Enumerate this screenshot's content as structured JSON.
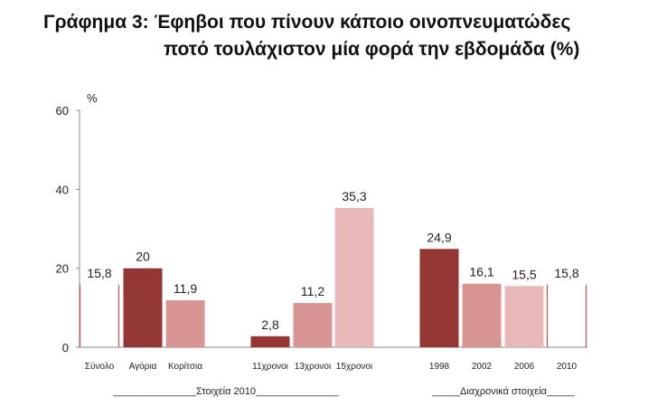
{
  "title_line1": "Γράφημα 3:  Έφηβοι που πίνουν κάποιο οινοπνευματώδες",
  "title_line2": "ποτό τουλάχιστον μία φορά την εβδομάδα (%)",
  "chart_data": {
    "type": "bar",
    "ylabel": "%",
    "ylim": [
      0,
      60
    ],
    "yticks": [
      "0",
      "20",
      "40",
      "60"
    ],
    "categories": [
      "Σύνολο",
      "Αγόρια",
      "Κορίτσια",
      "11χρονοι",
      "13χρονοι",
      "15χρονοι",
      "1998",
      "2002",
      "2006",
      "2010"
    ],
    "values": [
      15.8,
      20,
      11.9,
      2.8,
      11.2,
      35.3,
      24.9,
      16.1,
      15.5,
      15.8
    ],
    "value_labels": [
      "15,8",
      "20",
      "11,9",
      "2,8",
      "11,2",
      "35,3",
      "24,9",
      "16,1",
      "15,5",
      "15,8"
    ],
    "outline_bars": [
      0,
      9
    ],
    "groups": [
      {
        "label": "_______________Στοιχεία 2010_______________"
      },
      {
        "label": "_____Διαχρονικά στοιχεία_____"
      }
    ],
    "colors": {
      "dark": "#943634",
      "medium": "#D99594",
      "light": "#E9B9B9",
      "outline": "#C0504D"
    },
    "bar_colors": [
      "none",
      "dark",
      "medium",
      "dark",
      "medium",
      "light",
      "dark",
      "medium",
      "light",
      "none"
    ]
  }
}
